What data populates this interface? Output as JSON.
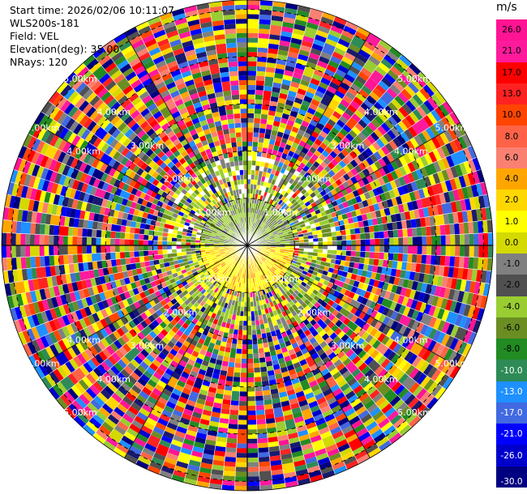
{
  "info": {
    "start_time": "Start time: 2026/02/06 10:11:07",
    "instrument": "WLS200s-181",
    "field": "Field: VEL",
    "elevation": "Elevation(deg): 35.00",
    "nrays": "NRays: 120"
  },
  "colorbar": {
    "unit": "m/s",
    "ticks": [
      "26.0",
      "21.0",
      "17.0",
      "13.0",
      "10.0",
      "8.0",
      "6.0",
      "4.0",
      "2.0",
      "1.0",
      "0.0",
      "-1.0",
      "-2.0",
      "-4.0",
      "-6.0",
      "-8.0",
      "-10.0",
      "-13.0",
      "-17.0",
      "-21.0",
      "-26.0",
      "-30.0"
    ],
    "colors": [
      "#ff1493",
      "#ff1a9c",
      "#ff0000",
      "#ff2222",
      "#ff4500",
      "#ff6347",
      "#fa8072",
      "#ffa500",
      "#ffd700",
      "#ffff00",
      "#d4d900",
      "#808080",
      "#505050",
      "#9acd32",
      "#6b8e23",
      "#228b22",
      "#2e8b57",
      "#1e90ff",
      "#4169e1",
      "#0000ff",
      "#0000cd",
      "#000080",
      "#191970"
    ]
  },
  "chart_data": {
    "type": "heatmap",
    "subtype": "PPI polar scan",
    "field": "VEL",
    "units": "m/s",
    "elevation_deg": 35.0,
    "n_rays": 120,
    "color_range": [
      -30.0,
      26.0
    ],
    "range_rings_km": [
      1.0,
      2.0,
      3.0,
      4.0,
      5.0
    ],
    "ring_labels": [
      "1.00km",
      "2.00km",
      "3.00km",
      "4.00km",
      "5.00km"
    ],
    "max_range_km": 5.2,
    "spokes_deg_step": 30,
    "near_field_pattern": {
      "north_sector": "negative velocities (-1 to -4 m/s), green",
      "south_sector": "positive velocities (2 to 6 m/s), yellow/orange",
      "beyond_2km": "noisy, full colour range"
    }
  }
}
